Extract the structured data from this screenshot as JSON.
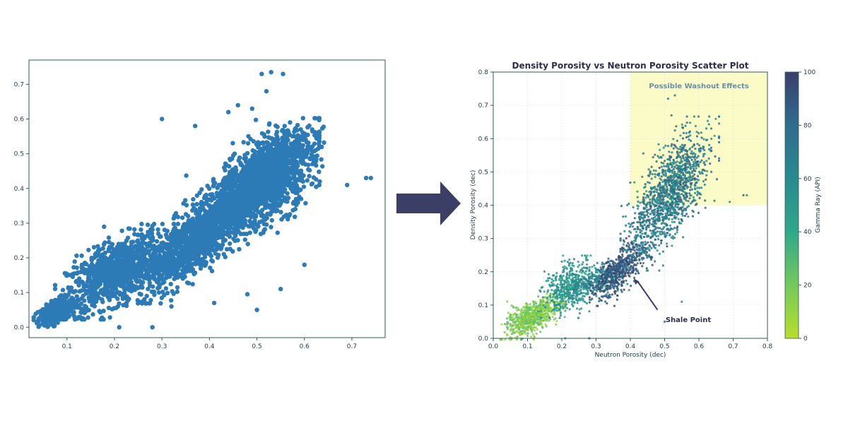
{
  "colors": {
    "raw_points": "#2c7bb6",
    "axis": "#2f5b52",
    "arrow": "#3b3f66",
    "highlight": "#fbfbc7",
    "annotation_text": "#6b8fa0",
    "viridis_low": "#b8de29",
    "viridis_high": "#3b3e6b"
  },
  "chart_data": [
    {
      "type": "scatter",
      "title": "",
      "xlabel": "",
      "ylabel": "",
      "xlim": [
        0.02,
        0.77
      ],
      "ylim": [
        -0.03,
        0.77
      ],
      "xticks": [
        "0.1",
        "0.2",
        "0.3",
        "0.4",
        "0.5",
        "0.6",
        "0.7"
      ],
      "yticks": [
        "0.0",
        "0.1",
        "0.2",
        "0.3",
        "0.4",
        "0.5",
        "0.6",
        "0.7"
      ],
      "grid": false,
      "series": [
        {
          "color": "#2c7bb6",
          "clusters": [
            {
              "x": [
                0.04,
                0.12
              ],
              "y": [
                0.01,
                0.08
              ],
              "n": 350,
              "trend": 0.55
            },
            {
              "x": [
                0.1,
                0.3
              ],
              "y": [
                0.05,
                0.27
              ],
              "n": 900,
              "trend": 0.6
            },
            {
              "x": [
                0.25,
                0.45
              ],
              "y": [
                0.1,
                0.35
              ],
              "n": 800,
              "trend": 0.7
            },
            {
              "x": [
                0.35,
                0.6
              ],
              "y": [
                0.22,
                0.56
              ],
              "n": 1500,
              "trend": 0.8
            },
            {
              "x": [
                0.45,
                0.62
              ],
              "y": [
                0.3,
                0.55
              ],
              "n": 700,
              "trend": 0.5
            }
          ],
          "outliers": [
            [
              0.51,
              0.73
            ],
            [
              0.53,
              0.735
            ],
            [
              0.555,
              0.73
            ],
            [
              0.52,
              0.68
            ],
            [
              0.46,
              0.64
            ],
            [
              0.49,
              0.63
            ],
            [
              0.73,
              0.43
            ],
            [
              0.74,
              0.43
            ],
            [
              0.69,
              0.41
            ],
            [
              0.37,
              0.58
            ],
            [
              0.3,
              0.6
            ],
            [
              0.44,
              0.62
            ],
            [
              0.28,
              0.0
            ],
            [
              0.21,
              0.0
            ],
            [
              0.5,
              0.05
            ],
            [
              0.55,
              0.11
            ],
            [
              0.6,
              0.18
            ],
            [
              0.48,
              0.095
            ],
            [
              0.41,
              0.07
            ],
            [
              0.32,
              0.06
            ]
          ]
        }
      ]
    },
    {
      "type": "scatter",
      "title": "Density Porosity vs Neutron Porosity Scatter Plot",
      "xlabel": "Neutron Porosity (dec)",
      "ylabel": "Density Porosity (dec)",
      "xlim": [
        0,
        0.8
      ],
      "ylim": [
        0,
        0.8
      ],
      "xticks": [
        "0.0",
        "0.1",
        "0.2",
        "0.3",
        "0.4",
        "0.5",
        "0.6",
        "0.7",
        "0.8"
      ],
      "yticks": [
        "0.0",
        "0.1",
        "0.2",
        "0.3",
        "0.4",
        "0.5",
        "0.6",
        "0.7",
        "0.8"
      ],
      "grid": true,
      "colorbar": {
        "label": "Gamma Ray (API)",
        "range": [
          0,
          100
        ],
        "ticks": [
          "0",
          "20",
          "40",
          "60",
          "80",
          "100"
        ],
        "colormap": "viridis"
      },
      "highlight_region": {
        "x": [
          0.4,
          0.8
        ],
        "y": [
          0.4,
          0.8
        ],
        "label": "Possible Washout Effects"
      },
      "annotation": {
        "text": "Shale Point",
        "xy": [
          0.41,
          0.18
        ],
        "xytext": [
          0.5,
          0.06
        ]
      },
      "series": [
        {
          "color_by": "Gamma Ray (API)",
          "clusters": [
            {
              "x": [
                0.04,
                0.19
              ],
              "y": [
                0.01,
                0.12
              ],
              "n": 700,
              "trend": 0.6,
              "gr": [
                3,
                30
              ]
            },
            {
              "x": [
                0.15,
                0.3
              ],
              "y": [
                0.08,
                0.23
              ],
              "n": 500,
              "trend": 0.4,
              "gr": [
                40,
                65
              ]
            },
            {
              "x": [
                0.25,
                0.38
              ],
              "y": [
                0.13,
                0.22
              ],
              "n": 250,
              "trend": 0.5,
              "gr": [
                55,
                80
              ]
            },
            {
              "x": [
                0.3,
                0.45
              ],
              "y": [
                0.12,
                0.3
              ],
              "n": 450,
              "trend": 0.7,
              "gr": [
                80,
                100
              ]
            },
            {
              "x": [
                0.4,
                0.63
              ],
              "y": [
                0.25,
                0.62
              ],
              "n": 1300,
              "trend": 0.7,
              "gr": [
                50,
                90
              ]
            }
          ],
          "outliers": [
            [
              0.51,
              0.72
            ],
            [
              0.53,
              0.73
            ],
            [
              0.52,
              0.67
            ],
            [
              0.73,
              0.43
            ],
            [
              0.74,
              0.43
            ],
            [
              0.69,
              0.41
            ],
            [
              0.28,
              0.0
            ],
            [
              0.21,
              0.0
            ],
            [
              0.5,
              0.05
            ],
            [
              0.55,
              0.11
            ]
          ]
        }
      ]
    }
  ]
}
